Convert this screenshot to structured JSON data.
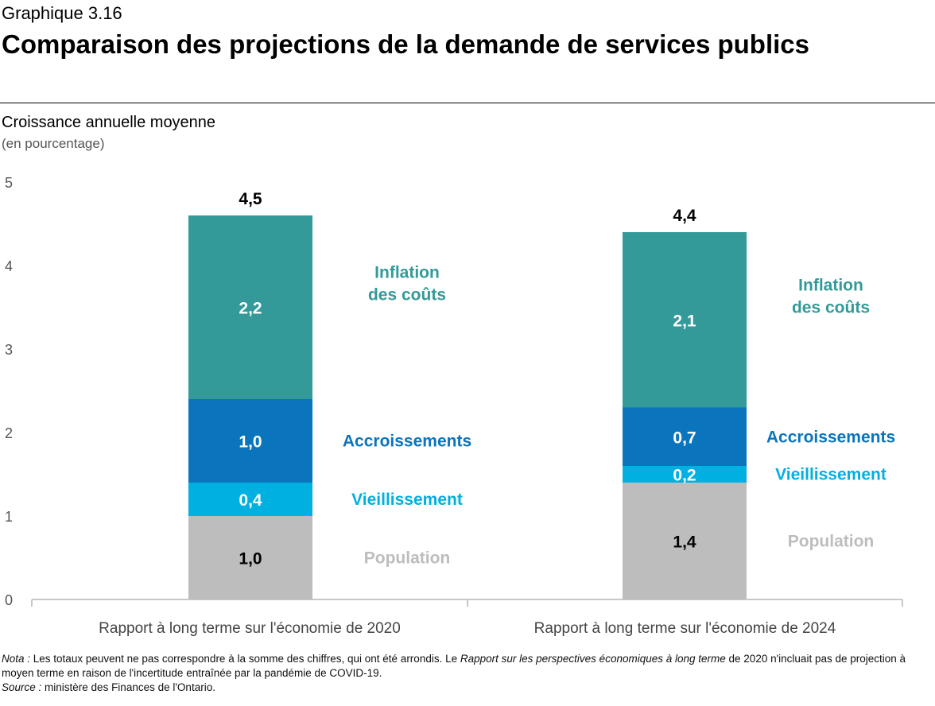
{
  "header": {
    "graph_number": "Graphique 3.16",
    "title": "Comparaison des projections de la demande de services publics",
    "subtitle": "Croissance annuelle moyenne",
    "unit": "(en pourcentage)"
  },
  "colors": {
    "inflation": "#339999",
    "accroissements": "#0a75bc",
    "vieillissement": "#00b0e0",
    "population": "#bdbdbd"
  },
  "chart_data": {
    "type": "bar",
    "stacked": true,
    "categories": [
      "Rapport à long terme sur l'économie de 2020",
      "Rapport à long terme sur l'économie de 2024"
    ],
    "series": [
      {
        "name": "Population",
        "key": "population",
        "values": [
          1.0,
          1.4
        ],
        "labels": [
          "1,0",
          "1,4"
        ]
      },
      {
        "name": "Vieillissement",
        "key": "vieillissement",
        "values": [
          0.4,
          0.2
        ],
        "labels": [
          "0,4",
          "0,2"
        ]
      },
      {
        "name": "Accroissements",
        "key": "accroissements",
        "values": [
          1.0,
          0.7
        ],
        "labels": [
          "1,0",
          "0,7"
        ]
      },
      {
        "name": "Inflation des coûts",
        "key": "inflation",
        "values": [
          2.2,
          2.1
        ],
        "labels": [
          "2,2",
          "2,1"
        ]
      }
    ],
    "totals": [
      4.5,
      4.4
    ],
    "total_labels": [
      "4,5",
      "4,4"
    ],
    "ylim": [
      0,
      5
    ],
    "yticks": [
      0,
      1,
      2,
      3,
      4,
      5
    ],
    "series_labels": [
      {
        "key": "inflation",
        "lines": [
          "Inflation",
          "des coûts"
        ]
      },
      {
        "key": "accroissements",
        "lines": [
          "Accroissements"
        ]
      },
      {
        "key": "vieillissement",
        "lines": [
          "Vieillissement"
        ]
      },
      {
        "key": "population",
        "lines": [
          "Population"
        ]
      }
    ]
  },
  "footnote": {
    "nota_label": "Nota :",
    "nota_text_1": " Les totaux peuvent ne pas correspondre à la somme des chiffres, qui ont été arrondis. Le ",
    "nota_italic": "Rapport sur les perspectives économiques à long terme",
    "nota_text_2": " de 2020 n'incluait pas de projection à moyen terme en raison de l'incertitude entraînée par la pandémie de COVID-19.",
    "source_label": "Source :",
    "source_text": " ministère des Finances de l'Ontario."
  }
}
